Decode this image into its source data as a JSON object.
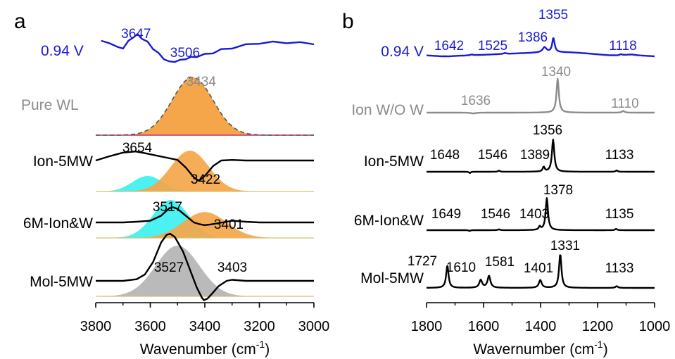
{
  "chart_data": [
    {
      "type": "line",
      "panel_label": "a",
      "xlabel": "Wavenumber (cm",
      "xlabel_sup": "-1",
      "xlabel_close": ")",
      "xlim": [
        3800,
        3000
      ],
      "x_ticks": [
        "3800",
        "3600",
        "3400",
        "3200",
        "3000"
      ],
      "x_tick_values": [
        3800,
        3600,
        3400,
        3200,
        3000
      ],
      "colors": {
        "orange": "#f5a64a",
        "cyan": "#3df0f0",
        "gray": "#b4b4b4",
        "blue": "#1a1ad6",
        "black": "#000000",
        "traceGray": "#8c8c8c"
      },
      "series": [
        {
          "name": "0.94 V",
          "color": "#1a1ad6",
          "peaks": [
            "3647",
            "3506"
          ],
          "peak_values": [
            3647,
            3506
          ],
          "x": [
            3780,
            3750,
            3720,
            3700,
            3680,
            3660,
            3647,
            3630,
            3610,
            3590,
            3570,
            3550,
            3530,
            3510,
            3490,
            3470,
            3450,
            3430,
            3400,
            3370,
            3340,
            3300,
            3250,
            3200,
            3150,
            3100,
            3050,
            3000
          ],
          "y": [
            0.55,
            0.52,
            0.32,
            0.32,
            0.55,
            0.75,
            0.8,
            0.68,
            0.52,
            0.3,
            0.1,
            -0.08,
            -0.22,
            -0.18,
            -0.16,
            -0.08,
            -0.05,
            0.0,
            0.06,
            0.14,
            0.24,
            0.32,
            0.42,
            0.5,
            0.52,
            0.52,
            0.5,
            0.48
          ]
        },
        {
          "name": "Pure WL",
          "color": "#8c8c8c",
          "peaks": [
            "3434"
          ],
          "peak_values": [
            3434
          ],
          "center": 3445,
          "width": 75
        },
        {
          "name": "Ion-5MW",
          "color": "#000000",
          "peaks": [
            "3654",
            "3422"
          ],
          "peak_values": [
            3654,
            3422
          ],
          "x": [
            3800,
            3750,
            3700,
            3654,
            3620,
            3580,
            3540,
            3500,
            3470,
            3440,
            3422,
            3400,
            3370,
            3340,
            3300,
            3250,
            3200,
            3100,
            3000
          ],
          "y": [
            0.0,
            0.15,
            0.28,
            0.32,
            0.26,
            0.18,
            0.1,
            0.02,
            -0.25,
            -0.6,
            -0.72,
            -0.55,
            -0.2,
            0.0,
            0.02,
            0.0,
            0.0,
            0.0,
            0.0
          ],
          "fills": [
            {
              "color": "#3df0f0",
              "center": 3610,
              "width": 55,
              "amp": 0.38
            },
            {
              "color": "#f5a64a",
              "center": 3455,
              "width": 70,
              "amp": 1.0
            }
          ]
        },
        {
          "name": "6M-Ion&W",
          "color": "#000000",
          "peaks": [
            "3517",
            "3401"
          ],
          "peak_values": [
            3517,
            3401
          ],
          "x": [
            3800,
            3700,
            3650,
            3600,
            3560,
            3530,
            3517,
            3500,
            3470,
            3440,
            3420,
            3401,
            3380,
            3350,
            3320,
            3300,
            3250,
            3200,
            3100,
            3000
          ],
          "y": [
            0.0,
            0.0,
            0.02,
            0.05,
            0.2,
            0.42,
            0.45,
            0.4,
            0.2,
            0.0,
            -0.05,
            -0.08,
            -0.06,
            -0.02,
            0.02,
            0.05,
            0.02,
            0.0,
            0.0,
            0.0
          ],
          "fills": [
            {
              "color": "#3df0f0",
              "center": 3525,
              "width": 65,
              "amp": 1.0
            },
            {
              "color": "#f5a64a",
              "center": 3400,
              "width": 80,
              "amp": 0.68
            }
          ]
        },
        {
          "name": "Mol-5MW",
          "color": "#000000",
          "peaks": [
            "3527",
            "3403"
          ],
          "peak_values": [
            3527,
            3403
          ],
          "x": [
            3800,
            3700,
            3650,
            3620,
            3590,
            3560,
            3540,
            3527,
            3510,
            3480,
            3450,
            3430,
            3410,
            3403,
            3390,
            3370,
            3350,
            3320,
            3300,
            3250,
            3200,
            3100,
            3000
          ],
          "y": [
            0.0,
            0.0,
            0.03,
            0.12,
            0.35,
            0.72,
            0.86,
            0.88,
            0.82,
            0.55,
            0.15,
            -0.12,
            -0.32,
            -0.36,
            -0.33,
            -0.22,
            -0.1,
            0.0,
            0.02,
            0.0,
            0.0,
            0.0,
            0.0
          ],
          "fills": [
            {
              "color": "#b4b4b4",
              "center": 3500,
              "width": 80,
              "amp": 1.0
            }
          ]
        }
      ]
    },
    {
      "type": "line",
      "panel_label": "b",
      "xlabel": "Wavernumber (cm",
      "xlabel_sup": "-1",
      "xlabel_close": ")",
      "xlim": [
        1800,
        1000
      ],
      "x_ticks": [
        "1800",
        "1600",
        "1400",
        "1200",
        "1000"
      ],
      "x_tick_values": [
        1800,
        1600,
        1400,
        1200,
        1000
      ],
      "series": [
        {
          "name": "0.94 V",
          "color": "#1a1ad6",
          "peaks": [
            "1642",
            "1525",
            "1386",
            "1355",
            "1118"
          ],
          "peak_values": [
            1642,
            1525,
            1386,
            1355,
            1118
          ],
          "baseline": [
            0.1,
            0.05,
            0.0,
            0.0,
            0.05,
            0.08,
            0.12,
            0.15,
            0.18,
            0.22,
            0.25,
            0.28,
            0.32,
            0.35,
            0.38,
            0.42,
            0.44,
            0.46,
            0.44,
            0.42,
            0.38,
            0.32,
            0.25,
            0.18,
            0.12,
            0.1,
            0.15,
            0.2,
            0.1,
            0.05,
            0.0
          ],
          "lines": [
            {
              "pos": 1642,
              "amp": 0.08,
              "w": 6
            },
            {
              "pos": 1525,
              "amp": 0.1,
              "w": 6
            },
            {
              "pos": 1386,
              "amp": 0.55,
              "w": 8
            },
            {
              "pos": 1355,
              "amp": 1.55,
              "w": 5
            },
            {
              "pos": 1118,
              "amp": 0.1,
              "w": 5
            }
          ]
        },
        {
          "name": "Ion W/O W",
          "color": "#8c8c8c",
          "peaks": [
            "1636",
            "1340",
            "1110"
          ],
          "peak_values": [
            1636,
            1340,
            1110
          ],
          "lines": [
            {
              "pos": 1636,
              "amp": -0.06,
              "w": 10
            },
            {
              "pos": 1340,
              "amp": 2.4,
              "w": 5
            },
            {
              "pos": 1110,
              "amp": 0.12,
              "w": 5
            }
          ]
        },
        {
          "name": "Ion-5MW",
          "color": "#000000",
          "peaks": [
            "1648",
            "1546",
            "1389",
            "1356",
            "1133"
          ],
          "peak_values": [
            1648,
            1546,
            1389,
            1356,
            1133
          ],
          "lines": [
            {
              "pos": 1648,
              "amp": -0.1,
              "w": 3
            },
            {
              "pos": 1546,
              "amp": 0.08,
              "w": 4
            },
            {
              "pos": 1389,
              "amp": 0.35,
              "w": 4
            },
            {
              "pos": 1356,
              "amp": 2.4,
              "w": 5
            },
            {
              "pos": 1133,
              "amp": 0.1,
              "w": 4
            }
          ]
        },
        {
          "name": "6M-Ion&W",
          "color": "#000000",
          "peaks": [
            "1649",
            "1546",
            "1403",
            "1378",
            "1135"
          ],
          "peak_values": [
            1649,
            1546,
            1403,
            1378,
            1135
          ],
          "lines": [
            {
              "pos": 1649,
              "amp": -0.06,
              "w": 3
            },
            {
              "pos": 1546,
              "amp": 0.06,
              "w": 4
            },
            {
              "pos": 1403,
              "amp": 0.25,
              "w": 4
            },
            {
              "pos": 1378,
              "amp": 2.4,
              "w": 5
            },
            {
              "pos": 1135,
              "amp": 0.1,
              "w": 4
            }
          ]
        },
        {
          "name": "Mol-5MW",
          "color": "#000000",
          "peaks": [
            "1727",
            "1610",
            "1581",
            "1401",
            "1331"
          ],
          "peak_values": [
            1727,
            1610,
            1581,
            1401,
            1331
          ],
          "extra_peak": "1133",
          "extra_peak_value": 1133,
          "lines": [
            {
              "pos": 1727,
              "amp": 1.6,
              "w": 5
            },
            {
              "pos": 1610,
              "amp": 0.55,
              "w": 6
            },
            {
              "pos": 1581,
              "amp": 0.85,
              "w": 6
            },
            {
              "pos": 1401,
              "amp": 0.55,
              "w": 6
            },
            {
              "pos": 1331,
              "amp": 2.4,
              "w": 5
            },
            {
              "pos": 1133,
              "amp": 0.12,
              "w": 5
            }
          ]
        }
      ]
    }
  ]
}
